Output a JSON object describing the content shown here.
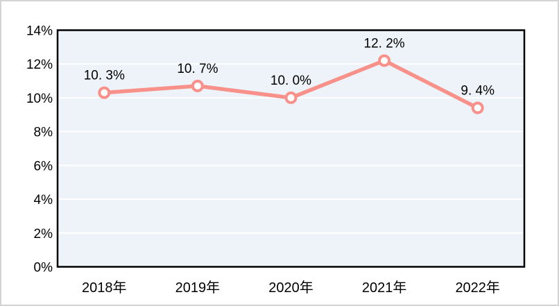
{
  "window": {
    "background": "#ffffff",
    "border_color": "#d3d3d3"
  },
  "chart_data": {
    "type": "line",
    "title": "",
    "categories": [
      "2018年",
      "2019年",
      "2020年",
      "2021年",
      "2022年"
    ],
    "values": [
      10.3,
      10.7,
      10.0,
      12.2,
      9.4
    ],
    "point_labels": [
      "10. 3%",
      "10. 7%",
      "10. 0%",
      "12. 2%",
      "9. 4%"
    ],
    "y_ticks": [
      {
        "value": 0,
        "label": "0%"
      },
      {
        "value": 2,
        "label": "2%"
      },
      {
        "value": 4,
        "label": "4%"
      },
      {
        "value": 6,
        "label": "6%"
      },
      {
        "value": 8,
        "label": "8%"
      },
      {
        "value": 10,
        "label": "10%"
      },
      {
        "value": 12,
        "label": "12%"
      },
      {
        "value": 14,
        "label": "14%"
      }
    ],
    "ylim": [
      0,
      14
    ],
    "grid": true,
    "legend_position": "none",
    "colors": {
      "line": "#f9918b",
      "marker_fill": "#ffffff",
      "plot_background": "#edf3f8",
      "plot_border": "#000000",
      "gridline": "#ffffff",
      "text": "#000000"
    }
  }
}
